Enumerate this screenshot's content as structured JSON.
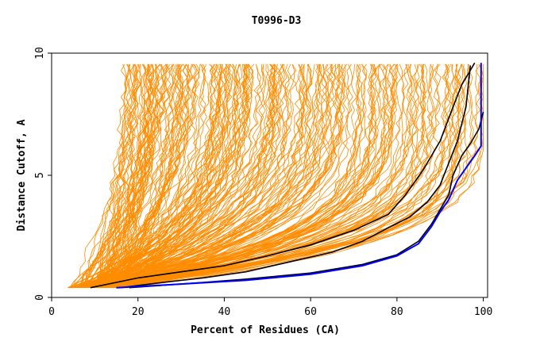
{
  "chart_data": {
    "type": "line",
    "title": "T0996-D3",
    "xlabel": "Percent of Residues (CA)",
    "ylabel": "Distance Cutoff, A",
    "xlim": [
      0,
      101
    ],
    "ylim": [
      0,
      10
    ],
    "x_ticks": [
      0,
      20,
      40,
      60,
      80,
      100
    ],
    "y_ticks": [
      0,
      5,
      10
    ],
    "grid": false,
    "legend": "none",
    "colors": {
      "orange": "#ff8c00",
      "black": "#000000",
      "blue": "#0000ff"
    },
    "series": [
      {
        "color": "#000000",
        "x": [
          9,
          20,
          30,
          40,
          50,
          60,
          70,
          78,
          82,
          86,
          90,
          93,
          95,
          97,
          98
        ],
        "y": [
          0.4,
          0.8,
          1.05,
          1.3,
          1.7,
          2.15,
          2.75,
          3.4,
          4.2,
          5.2,
          6.4,
          7.8,
          8.7,
          9.3,
          9.6
        ]
      },
      {
        "color": "#000000",
        "x": [
          16,
          25,
          35,
          45,
          55,
          65,
          72,
          78,
          83,
          87,
          90,
          92,
          94,
          96,
          97
        ],
        "y": [
          0.4,
          0.6,
          0.8,
          1.05,
          1.45,
          1.85,
          2.3,
          2.85,
          3.3,
          3.9,
          4.6,
          5.5,
          6.4,
          7.8,
          9.5
        ]
      },
      {
        "color": "#000000",
        "x": [
          18,
          30,
          45,
          60,
          72,
          80,
          85,
          88,
          90,
          92,
          93,
          95,
          97,
          99,
          100
        ],
        "y": [
          0.4,
          0.55,
          0.75,
          1.0,
          1.35,
          1.75,
          2.3,
          3.0,
          3.6,
          4.2,
          5.0,
          5.8,
          6.3,
          6.9,
          7.6
        ]
      },
      {
        "color": "#0000ff",
        "x": [
          15,
          30,
          45,
          60,
          72,
          80,
          85,
          88,
          90,
          92,
          93,
          94,
          96,
          98,
          99.5,
          99.5
        ],
        "y": [
          0.4,
          0.55,
          0.7,
          0.95,
          1.3,
          1.7,
          2.2,
          2.9,
          3.5,
          4.0,
          4.4,
          4.8,
          5.3,
          5.8,
          6.2,
          9.6
        ]
      }
    ]
  }
}
